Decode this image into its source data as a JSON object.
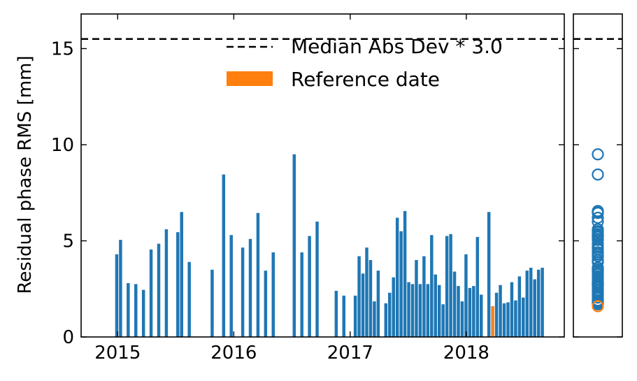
{
  "chart_data": {
    "type": "bar",
    "ylabel": "Residual phase RMS [mm]",
    "xlabel": "",
    "ylim": [
      0,
      16.8
    ],
    "xlim": [
      "2014-09-08",
      "2018-11-05"
    ],
    "x_ticks": [
      {
        "label": "2015",
        "date": "2015-01-01"
      },
      {
        "label": "2016",
        "date": "2016-01-01"
      },
      {
        "label": "2017",
        "date": "2017-01-01"
      },
      {
        "label": "2018",
        "date": "2018-01-01"
      }
    ],
    "y_ticks": [
      0,
      5,
      10,
      15
    ],
    "threshold": {
      "label": "Median Abs Dev * 3.0",
      "value": 15.5
    },
    "legend": {
      "placement": "top-center",
      "entries": [
        {
          "label": "Median Abs Dev * 3.0",
          "style": "dashed-line"
        },
        {
          "label": "Reference date",
          "style": "orange-patch"
        }
      ]
    },
    "colors": {
      "bar": "#1f77b4",
      "reference": "#ff7f0e",
      "threshold": "#000000"
    },
    "series": [
      {
        "type": "bar",
        "dates": [
          "2014-12-29",
          "2015-01-10",
          "2015-02-03",
          "2015-02-27",
          "2015-03-23",
          "2015-04-16",
          "2015-05-10",
          "2015-06-03",
          "2015-07-09",
          "2015-07-21",
          "2015-08-14",
          "2015-10-25",
          "2015-11-30",
          "2015-12-24",
          "2016-01-29",
          "2016-02-22",
          "2016-03-17",
          "2016-04-10",
          "2016-05-04",
          "2016-07-09",
          "2016-08-02",
          "2016-08-26",
          "2016-09-19",
          "2016-11-18",
          "2016-12-12",
          "2017-01-17",
          "2017-01-29",
          "2017-02-10",
          "2017-02-22",
          "2017-03-06",
          "2017-03-18",
          "2017-03-30",
          "2017-04-23",
          "2017-05-05",
          "2017-05-17",
          "2017-05-29",
          "2017-06-10",
          "2017-06-22",
          "2017-07-04",
          "2017-07-16",
          "2017-07-28",
          "2017-08-09",
          "2017-08-21",
          "2017-09-02",
          "2017-09-14",
          "2017-09-26",
          "2017-10-08",
          "2017-10-20",
          "2017-11-01",
          "2017-11-13",
          "2017-11-25",
          "2017-12-07",
          "2017-12-19",
          "2017-12-31",
          "2018-01-12",
          "2018-01-24",
          "2018-02-05",
          "2018-02-17",
          "2018-03-13",
          "2018-04-06",
          "2018-04-18",
          "2018-04-30",
          "2018-05-12",
          "2018-05-24",
          "2018-06-05",
          "2018-06-17",
          "2018-06-29",
          "2018-07-11",
          "2018-07-23",
          "2018-08-04",
          "2018-08-16",
          "2018-08-28"
        ],
        "values": [
          4.3,
          5.05,
          2.8,
          2.75,
          2.45,
          4.55,
          4.85,
          5.6,
          5.45,
          6.5,
          3.9,
          3.5,
          8.45,
          5.3,
          4.65,
          5.1,
          6.45,
          3.45,
          4.4,
          9.5,
          4.4,
          5.25,
          6.0,
          2.4,
          2.15,
          2.15,
          4.2,
          3.3,
          4.65,
          4.0,
          1.85,
          3.45,
          1.75,
          2.3,
          3.1,
          6.2,
          5.5,
          6.55,
          2.85,
          2.75,
          4.0,
          2.75,
          4.2,
          2.75,
          5.3,
          3.25,
          2.7,
          1.7,
          5.25,
          5.35,
          3.4,
          2.65,
          1.85,
          4.3,
          2.55,
          2.65,
          5.2,
          2.2,
          6.5,
          2.3,
          2.7,
          1.75,
          1.8,
          2.85,
          1.9,
          3.15,
          2.05,
          3.45,
          3.6,
          3.0,
          3.5,
          3.6
        ]
      }
    ],
    "reference": {
      "date": "2018-03-25",
      "value": 1.6
    },
    "side_panel": {
      "type": "scatter",
      "values_source": "series.0.values",
      "highlight": 1.6
    }
  }
}
